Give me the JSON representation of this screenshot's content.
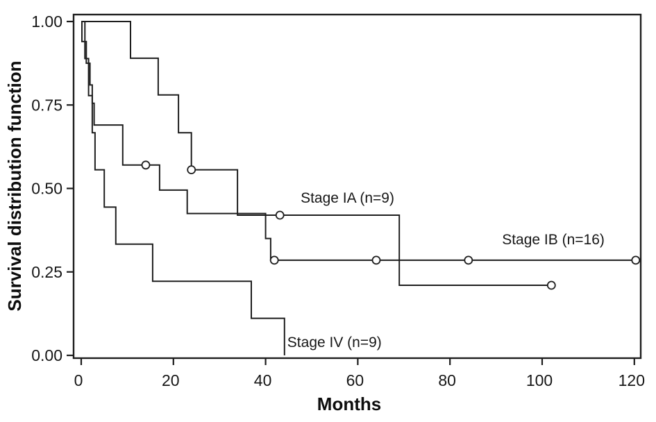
{
  "figure": {
    "kind": "Kaplan-Meier survival plot",
    "background": "#ffffff"
  },
  "axes": {
    "x": {
      "label": "Months"
    },
    "y": {
      "label": "Survival distribution function"
    }
  },
  "chart_data": {
    "type": "line",
    "subtype": "step-survival",
    "title": "",
    "xlabel": "Months",
    "ylabel": "Survival distribution function",
    "xlim": [
      0,
      120
    ],
    "ylim": [
      0.0,
      1.0
    ],
    "grid": false,
    "legend_position": "inline-annotations",
    "x_ticks": [
      0,
      20,
      40,
      60,
      80,
      100,
      120
    ],
    "y_ticks": [
      {
        "value": 1.0,
        "label": "1.00"
      },
      {
        "value": 0.75,
        "label": "0.75"
      },
      {
        "value": 0.5,
        "label": "0.50"
      },
      {
        "value": 0.25,
        "label": "0.25"
      },
      {
        "value": 0.0,
        "label": "0.00"
      }
    ],
    "colors": {
      "line": "#1d1d1d",
      "text": "#161616",
      "background": "#ffffff"
    },
    "series": [
      {
        "name": "Stage IA (n=9)",
        "points": [
          [
            0,
            1.0
          ],
          [
            10.7,
            1.0
          ],
          [
            10.7,
            0.89
          ],
          [
            16.7,
            0.89
          ],
          [
            16.7,
            0.78
          ],
          [
            21.1,
            0.78
          ],
          [
            21.1,
            0.667
          ],
          [
            23.9,
            0.667
          ],
          [
            23.9,
            0.556
          ],
          [
            33.9,
            0.556
          ],
          [
            33.9,
            0.42
          ],
          [
            69,
            0.42
          ],
          [
            69,
            0.21
          ],
          [
            102,
            0.21
          ]
        ],
        "censored": [
          [
            23.9,
            0.556
          ],
          [
            43.1,
            0.42
          ],
          [
            102,
            0.21
          ]
        ],
        "label_anchor": {
          "t": 47.6,
          "v": 0.457
        }
      },
      {
        "name": "Stage IB (n=16)",
        "points": [
          [
            0,
            1.0
          ],
          [
            0.15,
            1.0
          ],
          [
            0.15,
            0.94
          ],
          [
            1.1,
            0.94
          ],
          [
            1.1,
            0.875
          ],
          [
            1.9,
            0.875
          ],
          [
            1.9,
            0.81
          ],
          [
            2.4,
            0.81
          ],
          [
            2.4,
            0.755
          ],
          [
            2.8,
            0.755
          ],
          [
            2.8,
            0.69
          ],
          [
            9,
            0.69
          ],
          [
            9,
            0.57
          ],
          [
            17,
            0.57
          ],
          [
            17,
            0.495
          ],
          [
            23,
            0.495
          ],
          [
            23,
            0.425
          ],
          [
            40,
            0.425
          ],
          [
            40,
            0.35
          ],
          [
            41.1,
            0.35
          ],
          [
            41.1,
            0.285
          ],
          [
            120.3,
            0.285
          ]
        ],
        "censored": [
          [
            14,
            0.57
          ],
          [
            41.9,
            0.285
          ],
          [
            64,
            0.285
          ],
          [
            84,
            0.285
          ],
          [
            120.3,
            0.285
          ]
        ],
        "label_anchor": {
          "t": 91.3,
          "v": 0.333
        }
      },
      {
        "name": "Stage IV (n=9)",
        "points": [
          [
            0,
            1.0
          ],
          [
            0.8,
            1.0
          ],
          [
            0.8,
            0.889
          ],
          [
            1.6,
            0.889
          ],
          [
            1.6,
            0.778
          ],
          [
            2.4,
            0.778
          ],
          [
            2.4,
            0.667
          ],
          [
            3,
            0.667
          ],
          [
            3,
            0.556
          ],
          [
            5,
            0.556
          ],
          [
            5,
            0.444
          ],
          [
            7.5,
            0.444
          ],
          [
            7.5,
            0.333
          ],
          [
            15.5,
            0.333
          ],
          [
            15.5,
            0.222
          ],
          [
            36.9,
            0.222
          ],
          [
            36.9,
            0.111
          ],
          [
            44.1,
            0.111
          ],
          [
            44.1,
            0.0
          ]
        ],
        "censored": [],
        "label_anchor": {
          "t": 44.7,
          "v": 0.025
        }
      }
    ]
  }
}
